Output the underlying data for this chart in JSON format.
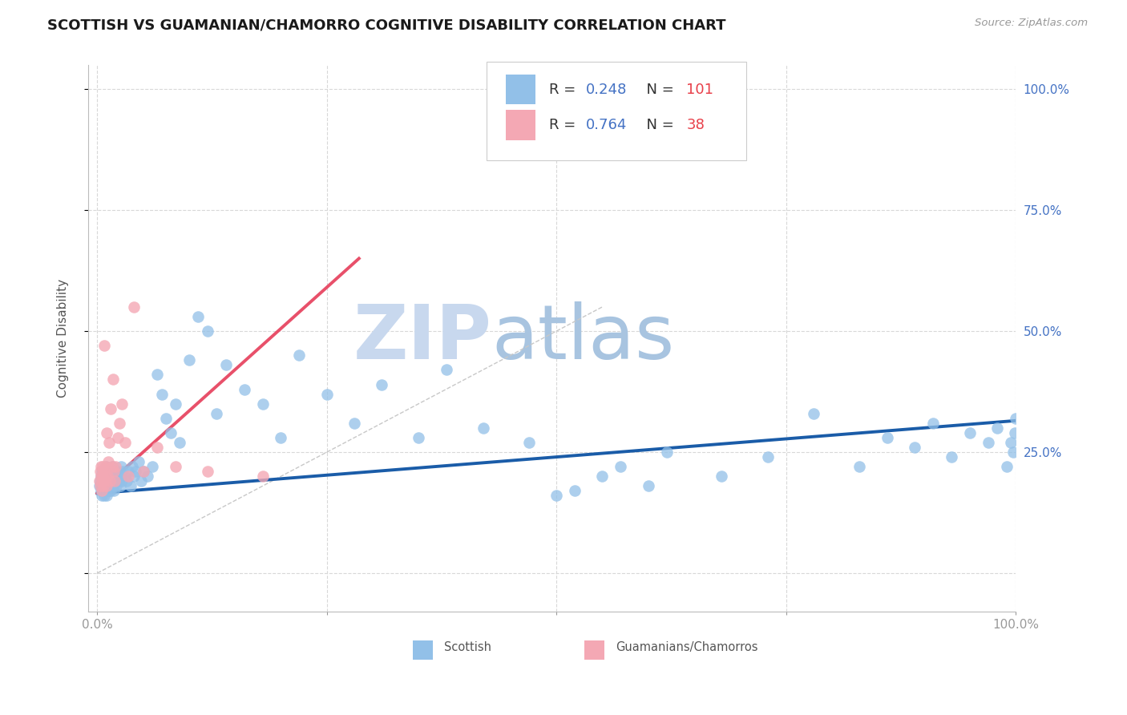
{
  "title": "SCOTTISH VS GUAMANIAN/CHAMORRO COGNITIVE DISABILITY CORRELATION CHART",
  "source": "Source: ZipAtlas.com",
  "ylabel": "Cognitive Disability",
  "R_scottish": 0.248,
  "N_scottish": 101,
  "R_guamanian": 0.764,
  "N_guamanian": 38,
  "scatter_color_scottish": "#92C0E8",
  "scatter_color_guamanian": "#F4A8B4",
  "line_color_scottish": "#1A5CA8",
  "line_color_guamanian": "#E8506A",
  "diagonal_color": "#C8C8C8",
  "background_color": "#FFFFFF",
  "grid_color": "#D8D8D8",
  "watermark_color": "#C5D8EE",
  "xlim": [
    -0.01,
    1.0
  ],
  "ylim": [
    -0.08,
    1.05
  ],
  "scottish_x": [
    0.002,
    0.003,
    0.004,
    0.004,
    0.005,
    0.005,
    0.005,
    0.006,
    0.006,
    0.007,
    0.007,
    0.008,
    0.008,
    0.008,
    0.009,
    0.009,
    0.009,
    0.01,
    0.01,
    0.01,
    0.011,
    0.011,
    0.012,
    0.012,
    0.013,
    0.013,
    0.014,
    0.014,
    0.015,
    0.015,
    0.016,
    0.016,
    0.017,
    0.018,
    0.018,
    0.019,
    0.02,
    0.021,
    0.022,
    0.023,
    0.024,
    0.025,
    0.026,
    0.027,
    0.028,
    0.03,
    0.032,
    0.034,
    0.036,
    0.038,
    0.04,
    0.042,
    0.045,
    0.048,
    0.05,
    0.055,
    0.06,
    0.065,
    0.07,
    0.075,
    0.08,
    0.085,
    0.09,
    0.1,
    0.11,
    0.12,
    0.13,
    0.14,
    0.16,
    0.18,
    0.2,
    0.22,
    0.25,
    0.28,
    0.31,
    0.35,
    0.38,
    0.42,
    0.47,
    0.52,
    0.57,
    0.62,
    0.68,
    0.73,
    0.78,
    0.83,
    0.86,
    0.89,
    0.91,
    0.93,
    0.95,
    0.97,
    0.98,
    0.99,
    0.995,
    0.997,
    0.999,
    1.0,
    0.5,
    0.55,
    0.6
  ],
  "scottish_y": [
    0.18,
    0.19,
    0.17,
    0.2,
    0.16,
    0.18,
    0.21,
    0.17,
    0.2,
    0.19,
    0.21,
    0.16,
    0.18,
    0.2,
    0.17,
    0.19,
    0.22,
    0.18,
    0.2,
    0.16,
    0.19,
    0.21,
    0.18,
    0.2,
    0.17,
    0.19,
    0.18,
    0.21,
    0.17,
    0.2,
    0.19,
    0.22,
    0.18,
    0.2,
    0.17,
    0.19,
    0.2,
    0.18,
    0.21,
    0.19,
    0.2,
    0.18,
    0.22,
    0.19,
    0.21,
    0.2,
    0.19,
    0.21,
    0.18,
    0.22,
    0.2,
    0.21,
    0.23,
    0.19,
    0.21,
    0.2,
    0.22,
    0.41,
    0.37,
    0.32,
    0.29,
    0.35,
    0.27,
    0.44,
    0.53,
    0.5,
    0.33,
    0.43,
    0.38,
    0.35,
    0.28,
    0.45,
    0.37,
    0.31,
    0.39,
    0.28,
    0.42,
    0.3,
    0.27,
    0.17,
    0.22,
    0.25,
    0.2,
    0.24,
    0.33,
    0.22,
    0.28,
    0.26,
    0.31,
    0.24,
    0.29,
    0.27,
    0.3,
    0.22,
    0.27,
    0.25,
    0.29,
    0.32,
    0.16,
    0.2,
    0.18
  ],
  "guamanian_x": [
    0.002,
    0.003,
    0.003,
    0.004,
    0.004,
    0.005,
    0.005,
    0.006,
    0.006,
    0.007,
    0.007,
    0.008,
    0.008,
    0.009,
    0.009,
    0.01,
    0.01,
    0.011,
    0.012,
    0.013,
    0.014,
    0.015,
    0.016,
    0.017,
    0.018,
    0.019,
    0.02,
    0.022,
    0.024,
    0.027,
    0.03,
    0.034,
    0.04,
    0.05,
    0.065,
    0.085,
    0.12,
    0.18
  ],
  "guamanian_y": [
    0.19,
    0.21,
    0.18,
    0.2,
    0.22,
    0.17,
    0.19,
    0.2,
    0.22,
    0.18,
    0.21,
    0.47,
    0.19,
    0.22,
    0.2,
    0.29,
    0.18,
    0.2,
    0.23,
    0.27,
    0.19,
    0.34,
    0.22,
    0.4,
    0.21,
    0.19,
    0.22,
    0.28,
    0.31,
    0.35,
    0.27,
    0.2,
    0.55,
    0.21,
    0.26,
    0.22,
    0.21,
    0.2
  ],
  "scottish_line_x": [
    0.0,
    1.0
  ],
  "scottish_line_y": [
    0.165,
    0.315
  ],
  "guamanian_line_x": [
    0.0,
    0.285
  ],
  "guamanian_line_y": [
    0.165,
    0.65
  ],
  "diag_line_x": [
    0.0,
    0.55
  ],
  "diag_line_y": [
    0.0,
    0.55
  ],
  "title_fontsize": 13,
  "label_fontsize": 11,
  "tick_fontsize": 11,
  "legend_fontsize": 13
}
